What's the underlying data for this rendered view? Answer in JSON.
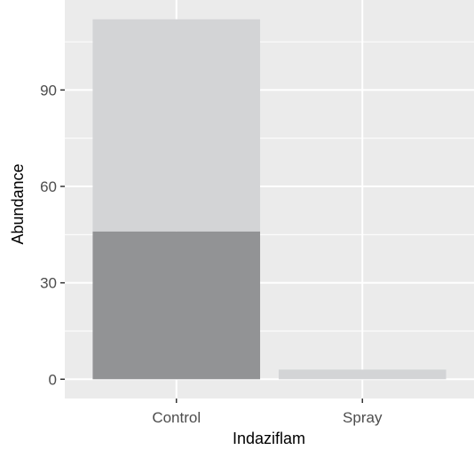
{
  "chart_data": {
    "type": "bar",
    "stacked": true,
    "title": "",
    "xlabel": "Indaziflam",
    "ylabel": "Abundance",
    "categories": [
      "Control",
      "Spray"
    ],
    "series": [
      {
        "values": [
          46,
          0
        ],
        "color": "#929395"
      },
      {
        "values": [
          66,
          3
        ],
        "color": "#d3d4d6"
      }
    ],
    "ylim": [
      -6,
      118
    ],
    "yticks": [
      0,
      30,
      60,
      90
    ],
    "ytick_labels": [
      "0",
      "30",
      "60",
      "90"
    ],
    "grid": true,
    "legend": "none",
    "panel_color": "#ebebeb",
    "grid_color": "#ffffff"
  }
}
